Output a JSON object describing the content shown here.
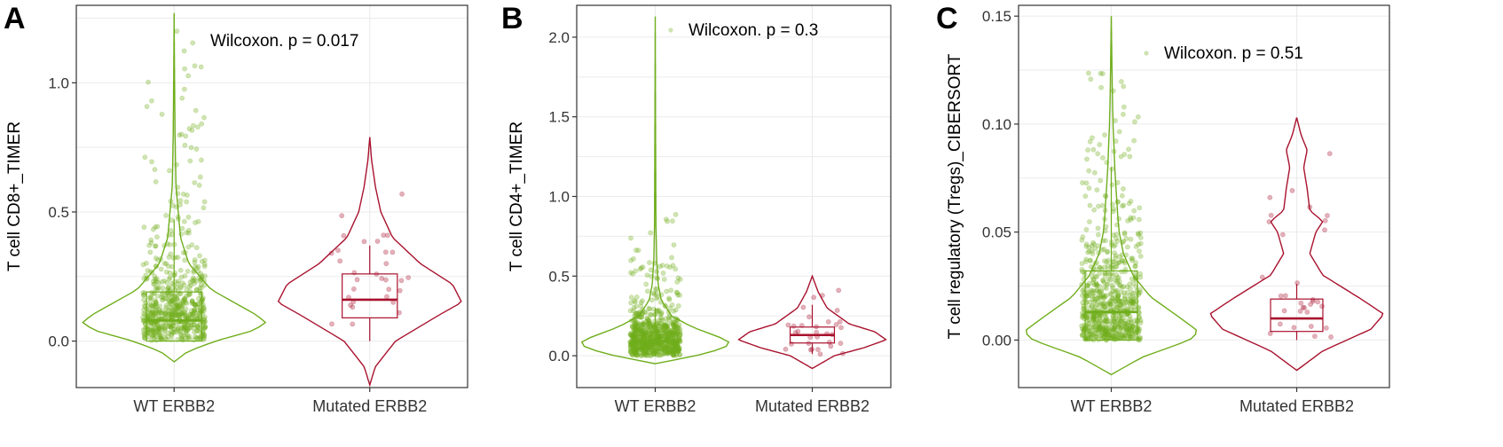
{
  "colors": {
    "wt": "#6fae1c",
    "mutated": "#a8112d",
    "grid": "#ebebeb",
    "border": "#333333"
  },
  "chart_data": [
    {
      "type": "violin",
      "panel_label": "A",
      "ylabel": "T cell CD8+_TIMER",
      "categories": [
        "WT ERBB2",
        "Mutated ERBB2"
      ],
      "annotation": "Wilcoxon. p = 0.017",
      "ylim": [
        -0.18,
        1.3
      ],
      "yticks": [
        0.0,
        0.5,
        1.0
      ],
      "ytick_labels": [
        "0.0",
        "0.5",
        "1.0"
      ],
      "grid": true,
      "series": [
        {
          "values_violin_range": [
            -0.08,
            1.27
          ],
          "density_profile": [
            [
              -0.08,
              0.0
            ],
            [
              -0.04,
              0.15
            ],
            [
              0.0,
              0.45
            ],
            [
              0.04,
              0.85
            ],
            [
              0.07,
              1.0
            ],
            [
              0.1,
              0.9
            ],
            [
              0.15,
              0.65
            ],
            [
              0.2,
              0.4
            ],
            [
              0.3,
              0.16
            ],
            [
              0.4,
              0.07
            ],
            [
              0.5,
              0.045
            ],
            [
              0.6,
              0.02
            ],
            [
              0.8,
              0.01
            ],
            [
              1.0,
              0.005
            ],
            [
              1.27,
              0.0
            ]
          ],
          "box": {
            "q1": 0.0,
            "median": 0.08,
            "q3": 0.19,
            "whisker_low": 0.0,
            "whisker_high": 0.47
          },
          "points_n": 650,
          "points_max": 1.2
        },
        {
          "values_violin_range": [
            -0.17,
            0.79
          ],
          "density_profile": [
            [
              -0.17,
              0.0
            ],
            [
              -0.1,
              0.06
            ],
            [
              0.0,
              0.28
            ],
            [
              0.1,
              0.75
            ],
            [
              0.15,
              1.0
            ],
            [
              0.22,
              0.9
            ],
            [
              0.3,
              0.55
            ],
            [
              0.4,
              0.25
            ],
            [
              0.5,
              0.12
            ],
            [
              0.6,
              0.06
            ],
            [
              0.7,
              0.02
            ],
            [
              0.79,
              0.0
            ]
          ],
          "box": {
            "q1": 0.09,
            "median": 0.16,
            "q3": 0.26,
            "whisker_low": 0.0,
            "whisker_high": 0.37
          },
          "points_n": 32,
          "points_max": 0.62
        }
      ]
    },
    {
      "type": "violin",
      "panel_label": "B",
      "ylabel": "T cell CD4+_TIMER",
      "categories": [
        "WT ERBB2",
        "Mutated ERBB2"
      ],
      "annotation": "Wilcoxon. p = 0.3",
      "ylim": [
        -0.2,
        2.2
      ],
      "yticks": [
        0.0,
        0.5,
        1.0,
        1.5,
        2.0
      ],
      "ytick_labels": [
        "0.0",
        "0.5",
        "1.0",
        "1.5",
        "2.0"
      ],
      "grid": true,
      "series": [
        {
          "values_violin_range": [
            -0.05,
            2.13
          ],
          "density_profile": [
            [
              -0.05,
              0.0
            ],
            [
              0.0,
              0.55
            ],
            [
              0.05,
              0.95
            ],
            [
              0.09,
              1.0
            ],
            [
              0.12,
              0.85
            ],
            [
              0.18,
              0.5
            ],
            [
              0.25,
              0.22
            ],
            [
              0.35,
              0.08
            ],
            [
              0.45,
              0.04
            ],
            [
              0.6,
              0.02
            ],
            [
              0.8,
              0.01
            ],
            [
              1.0,
              0.008
            ],
            [
              1.5,
              0.004
            ],
            [
              2.13,
              0.0
            ]
          ],
          "box": {
            "q1": 0.04,
            "median": 0.09,
            "q3": 0.15,
            "whisker_low": 0.0,
            "whisker_high": 0.3
          },
          "points_n": 750,
          "points_max": 0.95
        },
        {
          "values_violin_range": [
            -0.08,
            0.5
          ],
          "density_profile": [
            [
              -0.08,
              0.0
            ],
            [
              0.0,
              0.3
            ],
            [
              0.05,
              0.7
            ],
            [
              0.1,
              1.0
            ],
            [
              0.15,
              0.85
            ],
            [
              0.2,
              0.5
            ],
            [
              0.3,
              0.2
            ],
            [
              0.4,
              0.08
            ],
            [
              0.5,
              0.0
            ]
          ],
          "box": {
            "q1": 0.08,
            "median": 0.13,
            "q3": 0.18,
            "whisker_low": 0.01,
            "whisker_high": 0.32
          },
          "points_n": 32,
          "points_max": 0.42
        }
      ]
    },
    {
      "type": "violin",
      "panel_label": "C",
      "ylabel": "T cell regulatory (Tregs)_CIBERSORT",
      "categories": [
        "WT ERBB2",
        "Mutated ERBB2"
      ],
      "annotation": "Wilcoxon. p = 0.51",
      "ylim": [
        -0.022,
        0.155
      ],
      "yticks": [
        0.0,
        0.05,
        0.1,
        0.15
      ],
      "ytick_labels": [
        "0.00",
        "0.05",
        "0.10",
        "0.15"
      ],
      "grid": true,
      "series": [
        {
          "values_violin_range": [
            -0.016,
            0.15
          ],
          "density_profile": [
            [
              -0.016,
              0.0
            ],
            [
              -0.008,
              0.35
            ],
            [
              0.0,
              0.9
            ],
            [
              0.004,
              1.0
            ],
            [
              0.01,
              0.8
            ],
            [
              0.02,
              0.45
            ],
            [
              0.03,
              0.25
            ],
            [
              0.04,
              0.14
            ],
            [
              0.05,
              0.09
            ],
            [
              0.06,
              0.07
            ],
            [
              0.08,
              0.04
            ],
            [
              0.1,
              0.02
            ],
            [
              0.12,
              0.01
            ],
            [
              0.15,
              0.0
            ]
          ],
          "box": {
            "q1": 0.0,
            "median": 0.013,
            "q3": 0.032,
            "whisker_low": 0.0,
            "whisker_high": 0.08
          },
          "points_n": 700,
          "points_max": 0.13
        },
        {
          "values_violin_range": [
            -0.014,
            0.103
          ],
          "density_profile": [
            [
              -0.014,
              0.0
            ],
            [
              -0.005,
              0.3
            ],
            [
              0.005,
              0.85
            ],
            [
              0.012,
              1.0
            ],
            [
              0.02,
              0.7
            ],
            [
              0.03,
              0.3
            ],
            [
              0.04,
              0.15
            ],
            [
              0.05,
              0.22
            ],
            [
              0.055,
              0.3
            ],
            [
              0.06,
              0.15
            ],
            [
              0.07,
              0.12
            ],
            [
              0.08,
              0.08
            ],
            [
              0.088,
              0.12
            ],
            [
              0.095,
              0.05
            ],
            [
              0.103,
              0.0
            ]
          ],
          "box": {
            "q1": 0.004,
            "median": 0.01,
            "q3": 0.019,
            "whisker_low": 0.0,
            "whisker_high": 0.026
          },
          "points_n": 32,
          "points_max": 0.09
        }
      ]
    }
  ]
}
